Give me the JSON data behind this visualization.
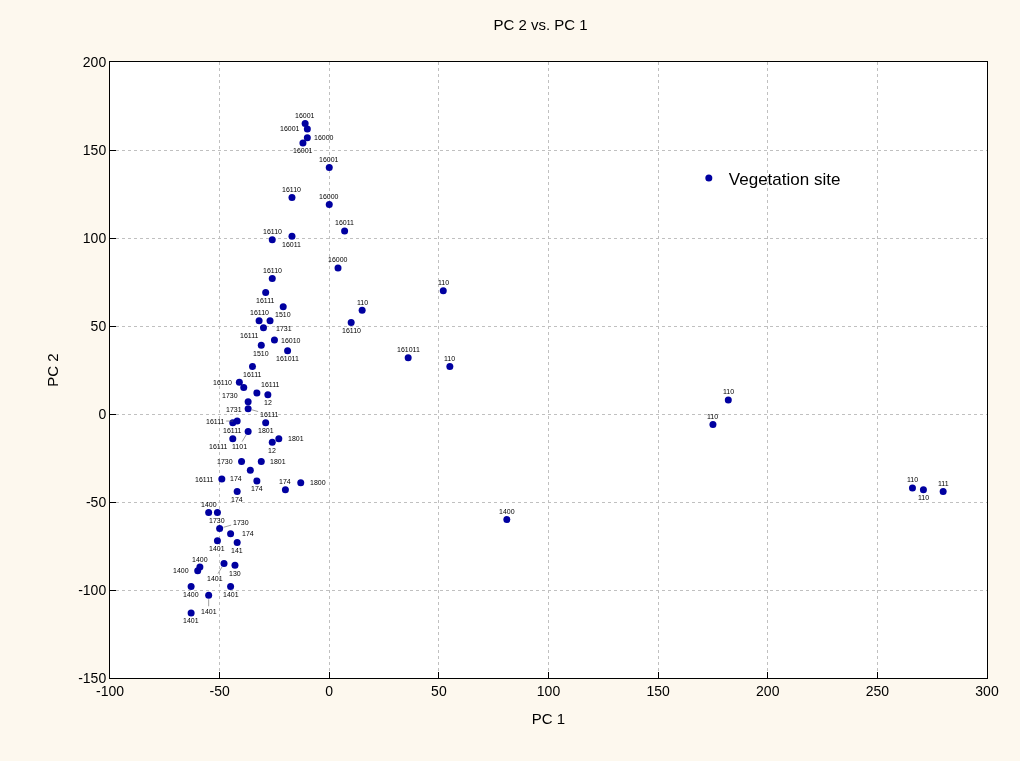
{
  "chart_data": {
    "type": "scatter",
    "title": "PC 2 vs. PC 1",
    "xlabel": "PC 1",
    "ylabel": "PC 2",
    "xlim": [
      -100,
      300
    ],
    "xticks": [
      -100,
      -50,
      0,
      50,
      100,
      150,
      200,
      250,
      300
    ],
    "ylim": [
      -150,
      200
    ],
    "yticks": [
      -150,
      -100,
      -50,
      0,
      50,
      100,
      150,
      200
    ],
    "grid": true,
    "legend": "top right",
    "marker": "circle",
    "series": [
      {
        "name": "Vegetation site",
        "color": "#0000a0",
        "x": [
          -11,
          -10,
          -10,
          -12,
          0,
          -17,
          0,
          7,
          -26,
          -17,
          4,
          -26,
          -29,
          -21,
          -32,
          -27,
          -30,
          -31,
          -25,
          -19,
          -35,
          -41,
          -39,
          -33,
          -28,
          -37,
          -37,
          -44,
          -42,
          -29,
          -37,
          -44,
          -23,
          -26,
          -40,
          -31,
          -36,
          -49,
          -33,
          -42,
          -20,
          -13,
          -55,
          -51,
          -50,
          -45,
          -51,
          -42,
          -48,
          -43,
          -59,
          -60,
          -63,
          -45,
          -55,
          -63,
          15,
          10,
          52,
          36,
          55,
          81,
          182,
          175,
          266,
          271,
          280
        ],
        "values": [
          165,
          162,
          157,
          154,
          140,
          123,
          119,
          104,
          99,
          101,
          83,
          77,
          69,
          61,
          53,
          53,
          49,
          39,
          42,
          36,
          27,
          18,
          15,
          12,
          11,
          7,
          3,
          -5,
          -4,
          -5,
          -10,
          -14,
          -14,
          -16,
          -27,
          -27,
          -32,
          -37,
          -38,
          -44,
          -43,
          -39,
          -56,
          -56,
          -65,
          -68,
          -72,
          -73,
          -85,
          -86,
          -87,
          -89,
          -98,
          -98,
          -103,
          -113,
          59,
          52,
          70,
          32,
          27,
          -60,
          8,
          -6,
          -42,
          -43,
          -44
        ]
      }
    ],
    "annotations": [
      {
        "text": "16001",
        "x": -11,
        "y": 165
      },
      {
        "text": "16001",
        "x": -10,
        "y": 162
      },
      {
        "text": "16000",
        "x": -10,
        "y": 157
      },
      {
        "text": "16001",
        "x": -12,
        "y": 154
      },
      {
        "text": "16001",
        "x": 0,
        "y": 140
      },
      {
        "text": "16110",
        "x": -17,
        "y": 123
      },
      {
        "text": "16000",
        "x": 0,
        "y": 119
      },
      {
        "text": "16011",
        "x": 7,
        "y": 104
      },
      {
        "text": "16110",
        "x": -26,
        "y": 99
      },
      {
        "text": "16011",
        "x": -17,
        "y": 101
      },
      {
        "text": "16000",
        "x": 4,
        "y": 83
      },
      {
        "text": "16110",
        "x": -26,
        "y": 77
      },
      {
        "text": "16111",
        "x": -29,
        "y": 69
      },
      {
        "text": "1510",
        "x": -21,
        "y": 61
      },
      {
        "text": "16110",
        "x": -32,
        "y": 53
      },
      {
        "text": "1731",
        "x": -27,
        "y": 53
      },
      {
        "text": "16111",
        "x": -30,
        "y": 49
      },
      {
        "text": "1510",
        "x": -31,
        "y": 39
      },
      {
        "text": "16010",
        "x": -25,
        "y": 42
      },
      {
        "text": "161011",
        "x": -19,
        "y": 36
      },
      {
        "text": "16111",
        "x": -35,
        "y": 27
      },
      {
        "text": "16110",
        "x": -41,
        "y": 18
      },
      {
        "text": "1730",
        "x": -39,
        "y": 15
      },
      {
        "text": "16111",
        "x": -33,
        "y": 12
      },
      {
        "text": "12",
        "x": -28,
        "y": 11
      },
      {
        "text": "1731",
        "x": -37,
        "y": 7
      },
      {
        "text": "16111",
        "x": -37,
        "y": 3
      },
      {
        "text": "16111",
        "x": -44,
        "y": -5
      },
      {
        "text": "16111",
        "x": -42,
        "y": -4
      },
      {
        "text": "1801",
        "x": -29,
        "y": -5
      },
      {
        "text": "1101",
        "x": -37,
        "y": -10
      },
      {
        "text": "16111",
        "x": -44,
        "y": -14
      },
      {
        "text": "1801",
        "x": -23,
        "y": -14
      },
      {
        "text": "12",
        "x": -26,
        "y": -16
      },
      {
        "text": "1730",
        "x": -40,
        "y": -27
      },
      {
        "text": "1801",
        "x": -31,
        "y": -27
      },
      {
        "text": "174",
        "x": -36,
        "y": -32
      },
      {
        "text": "16111",
        "x": -49,
        "y": -37
      },
      {
        "text": "174",
        "x": -33,
        "y": -38
      },
      {
        "text": "174",
        "x": -42,
        "y": -44
      },
      {
        "text": "174",
        "x": -20,
        "y": -43
      },
      {
        "text": "1800",
        "x": -13,
        "y": -39
      },
      {
        "text": "1400",
        "x": -55,
        "y": -56
      },
      {
        "text": "1730",
        "x": -51,
        "y": -56
      },
      {
        "text": "1730",
        "x": -50,
        "y": -65
      },
      {
        "text": "174",
        "x": -45,
        "y": -68
      },
      {
        "text": "1401",
        "x": -51,
        "y": -72
      },
      {
        "text": "141",
        "x": -42,
        "y": -73
      },
      {
        "text": "1401",
        "x": -48,
        "y": -85
      },
      {
        "text": "130",
        "x": -43,
        "y": -86
      },
      {
        "text": "1400",
        "x": -59,
        "y": -87
      },
      {
        "text": "1400",
        "x": -60,
        "y": -89
      },
      {
        "text": "1400",
        "x": -63,
        "y": -98
      },
      {
        "text": "1401",
        "x": -45,
        "y": -98
      },
      {
        "text": "1401",
        "x": -55,
        "y": -103
      },
      {
        "text": "1401",
        "x": -63,
        "y": -113
      },
      {
        "text": "110",
        "x": 15,
        "y": 59
      },
      {
        "text": "16110",
        "x": 10,
        "y": 52
      },
      {
        "text": "110",
        "x": 52,
        "y": 70
      },
      {
        "text": "161011",
        "x": 36,
        "y": 32
      },
      {
        "text": "110",
        "x": 55,
        "y": 27
      },
      {
        "text": "1400",
        "x": 81,
        "y": -60
      },
      {
        "text": "110",
        "x": 182,
        "y": 8
      },
      {
        "text": "110",
        "x": 175,
        "y": -6
      },
      {
        "text": "110",
        "x": 266,
        "y": -42
      },
      {
        "text": "110",
        "x": 271,
        "y": -43
      },
      {
        "text": "111",
        "x": 280,
        "y": -44
      }
    ]
  }
}
